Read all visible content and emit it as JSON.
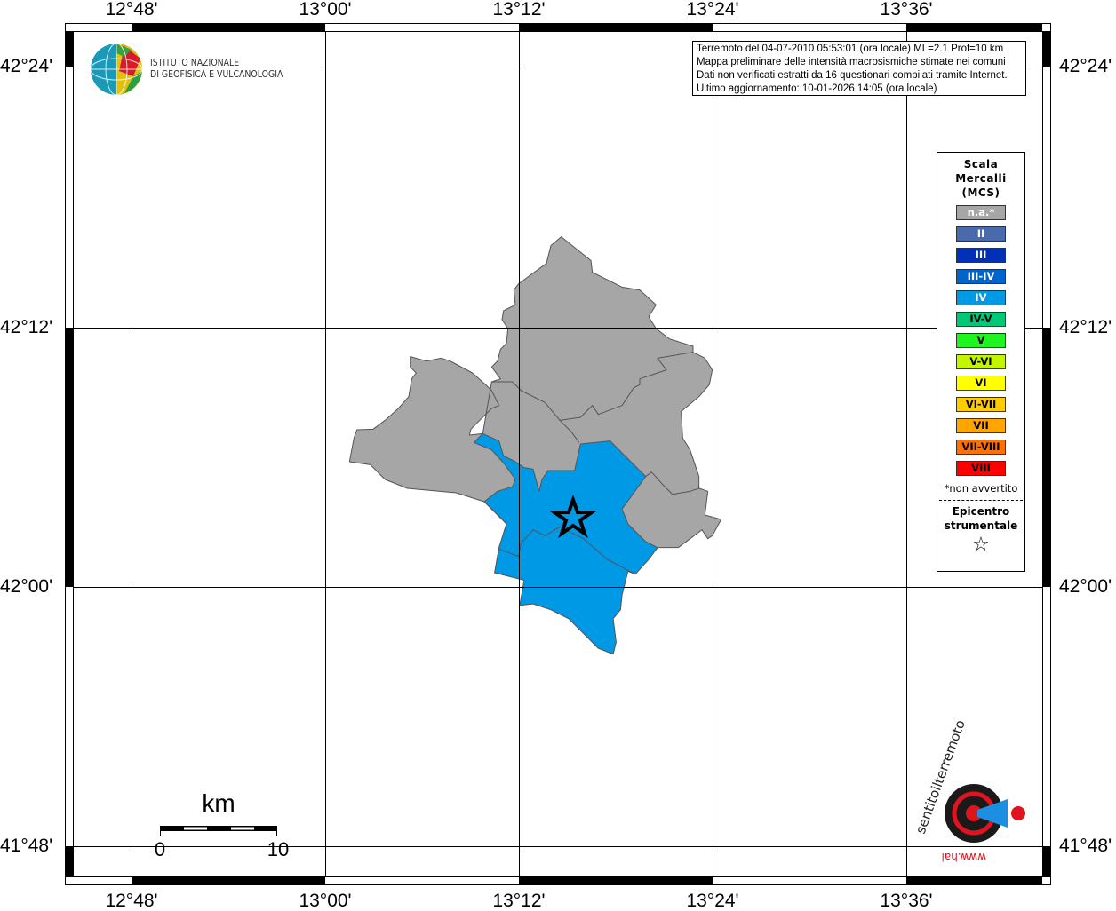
{
  "map": {
    "top_ticks": [
      "12°48'",
      "13°00'",
      "13°12'",
      "13°24'",
      "13°36'"
    ],
    "bottom_ticks": [
      "12°48'",
      "13°00'",
      "13°12'",
      "13°24'",
      "13°36'"
    ],
    "left_ticks": [
      "42°24'",
      "42°12'",
      "42°00'",
      "41°48'"
    ],
    "right_ticks": [
      "42°24'",
      "42°12'",
      "42°00'",
      "41°48'"
    ],
    "regions": [
      {
        "intensity": "n.a.",
        "color": "#a6a6a6"
      },
      {
        "intensity": "IV",
        "color": "#0099e6"
      }
    ],
    "epicenter_marker": "star-icon"
  },
  "info_box": {
    "lines": [
      "Terremoto del 04-07-2010 05:53:01 (ora locale) ML=2.1 Prof=10 km",
      "Mappa preliminare delle intensità macrosismiche stimate nei comuni",
      "Dati non verificati estratti da 16 questionari compilati tramite Internet.",
      "Ultimo aggiornamento: 10-01-2026 14:05 (ora locale)"
    ]
  },
  "legend": {
    "title_lines": [
      "Scala",
      "Mercalli",
      "(MCS)"
    ],
    "items": [
      {
        "label": "n.a.*",
        "color": "#a6a6a6",
        "text_color": "#ffffff"
      },
      {
        "label": "II",
        "color": "#4a6aae",
        "text_color": "#ffffff"
      },
      {
        "label": "III",
        "color": "#0030b8",
        "text_color": "#ffffff"
      },
      {
        "label": "III-IV",
        "color": "#0064cc",
        "text_color": "#ffffff"
      },
      {
        "label": "IV",
        "color": "#0099e6",
        "text_color": "#ffffff"
      },
      {
        "label": "IV-V",
        "color": "#00c878",
        "text_color": "#000000"
      },
      {
        "label": "V",
        "color": "#1ef51e",
        "text_color": "#000000"
      },
      {
        "label": "V-VI",
        "color": "#c4f500",
        "text_color": "#000000"
      },
      {
        "label": "VI",
        "color": "#ffff00",
        "text_color": "#000000"
      },
      {
        "label": "VI-VII",
        "color": "#ffcc00",
        "text_color": "#000000"
      },
      {
        "label": "VII",
        "color": "#ffa500",
        "text_color": "#000000"
      },
      {
        "label": "VII-VIII",
        "color": "#ff7000",
        "text_color": "#000000"
      },
      {
        "label": "VIII",
        "color": "#ff0000",
        "text_color": "#000000"
      }
    ],
    "note": "*non avvertito",
    "epicenter_lines": [
      "Epicentro",
      "strumentale"
    ],
    "epicenter_symbol": "☆"
  },
  "scale_bar": {
    "unit": "km",
    "start": "0",
    "end": "10"
  },
  "logos": {
    "ingv": [
      "ISTITUTO NAZIONALE",
      "DI GEOFISICA E VULCANOLOGIA"
    ],
    "hsit": "www.haisentitoilterremoto.it"
  }
}
